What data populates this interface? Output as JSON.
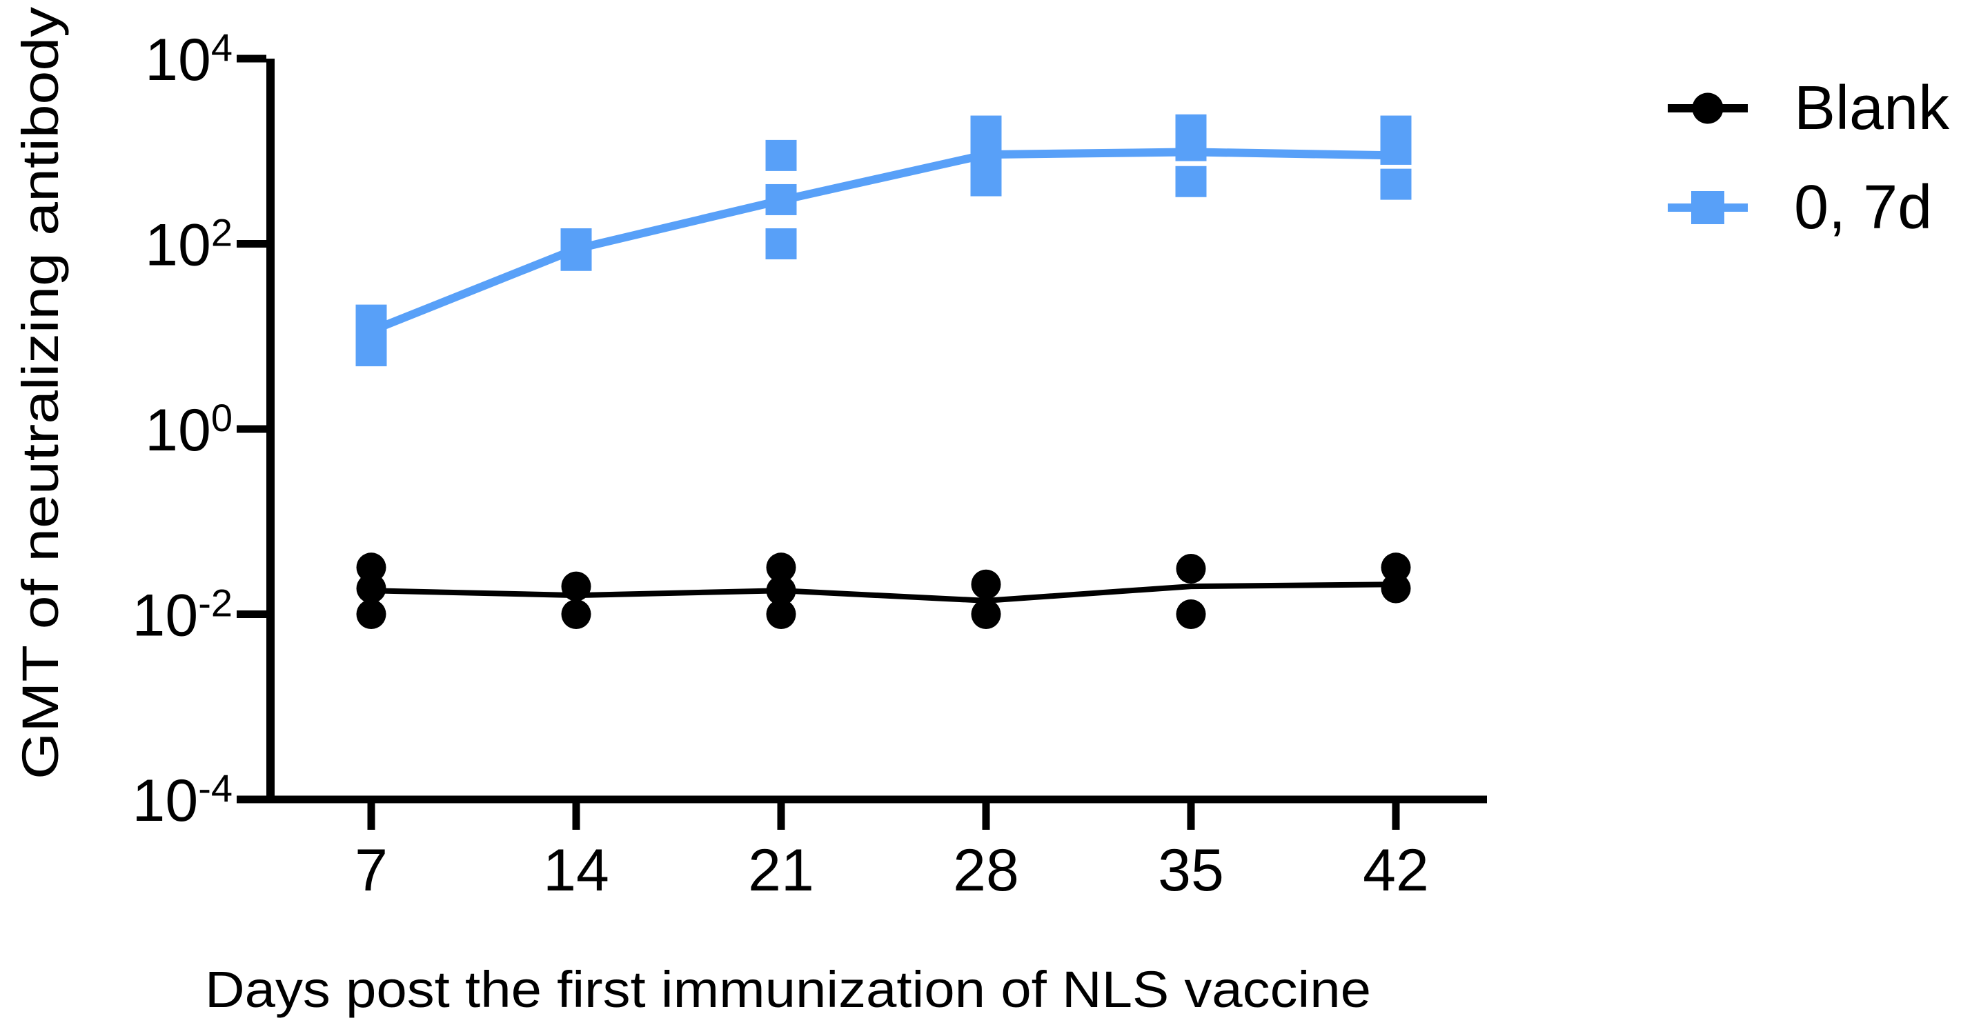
{
  "chart_data": {
    "type": "scatter",
    "title": "",
    "xlabel": "Days post the first immunization of NLS vaccine",
    "ylabel": "GMT of neutralizing antibody",
    "x_ticks": [
      7,
      14,
      21,
      28,
      35,
      42
    ],
    "y_ticks": [
      {
        "base": "10",
        "exp": "4"
      },
      {
        "base": "10",
        "exp": "2"
      },
      {
        "base": "10",
        "exp": "0"
      },
      {
        "base": "10",
        "exp": "-2"
      },
      {
        "base": "10",
        "exp": "-4"
      }
    ],
    "y_scale": "log10",
    "ylim": [
      0.0001,
      10000
    ],
    "grid": false,
    "legend_position": "right-top",
    "series": [
      {
        "name": "Blank",
        "color": "#000000",
        "marker": "circle",
        "x": [
          7,
          14,
          21,
          28,
          35,
          42
        ],
        "scatter": [
          [
            0.032,
            0.019,
            0.01
          ],
          [
            0.02,
            0.01
          ],
          [
            0.032,
            0.018,
            0.01
          ],
          [
            0.021,
            0.01
          ],
          [
            0.031,
            0.01
          ],
          [
            0.032,
            0.019
          ]
        ],
        "line": [
          0.018,
          0.016,
          0.018,
          0.014,
          0.02,
          0.021
        ]
      },
      {
        "name": "0, 7d",
        "color": "#58A0F8",
        "marker": "square",
        "x": [
          7,
          14,
          21,
          28,
          35,
          42
        ],
        "scatter": [
          [
            15,
            7
          ],
          [
            100,
            75
          ],
          [
            900,
            300,
            100
          ],
          [
            1650,
            900,
            480
          ],
          [
            1700,
            1150,
            470
          ],
          [
            1650,
            1050,
            440
          ]
        ],
        "line": [
          11.5,
          88,
          295,
          920,
          980,
          900
        ]
      }
    ]
  }
}
